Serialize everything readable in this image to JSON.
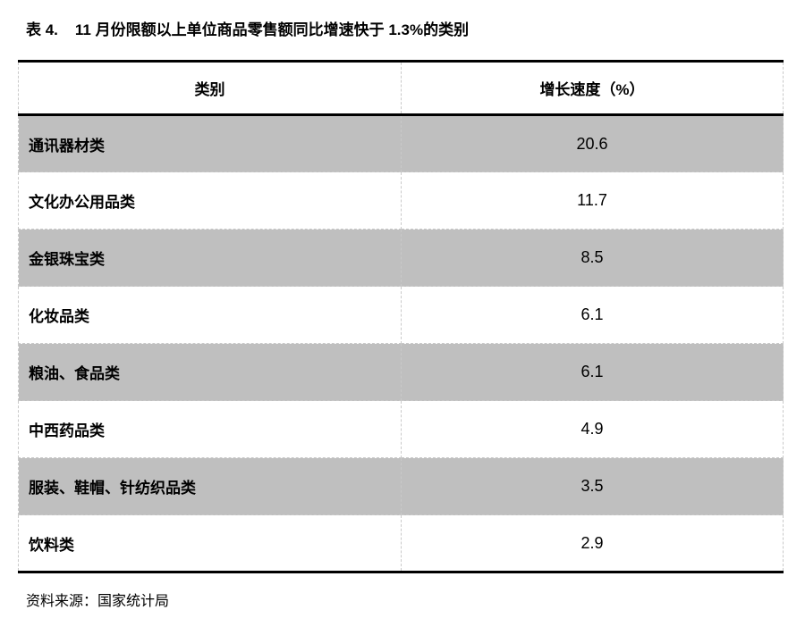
{
  "title": {
    "prefix": "表 4.",
    "text": "11 月份限额以上单位商品零售额同比增速快于 1.3%的类别"
  },
  "table": {
    "headers": [
      "类别",
      "增长速度（%）"
    ],
    "rows": [
      {
        "category": "通讯器材类",
        "value": "20.6"
      },
      {
        "category": "文化办公用品类",
        "value": "11.7"
      },
      {
        "category": "金银珠宝类",
        "value": "8.5"
      },
      {
        "category": "化妆品类",
        "value": "6.1"
      },
      {
        "category": "粮油、食品类",
        "value": "6.1"
      },
      {
        "category": "中西药品类",
        "value": "4.9"
      },
      {
        "category": "服装、鞋帽、针纺织品类",
        "value": "3.5"
      },
      {
        "category": "饮料类",
        "value": "2.9"
      }
    ]
  },
  "source": "资料来源：国家统计局",
  "colors": {
    "row_alt_background": "#bfbfbf",
    "heavy_border": "#000000",
    "light_dashed_border": "#c9c9c9"
  },
  "chart_data": {
    "type": "table",
    "title": "表 4. 11 月份限额以上单位商品零售额同比增速快于 1.3%的类别",
    "columns": [
      "类别",
      "增长速度（%）"
    ],
    "categories": [
      "通讯器材类",
      "文化办公用品类",
      "金银珠宝类",
      "化妆品类",
      "粮油、食品类",
      "中西药品类",
      "服装、鞋帽、针纺织品类",
      "饮料类"
    ],
    "values": [
      20.6,
      11.7,
      8.5,
      6.1,
      6.1,
      4.9,
      3.5,
      2.9
    ],
    "source": "资料来源：国家统计局"
  }
}
